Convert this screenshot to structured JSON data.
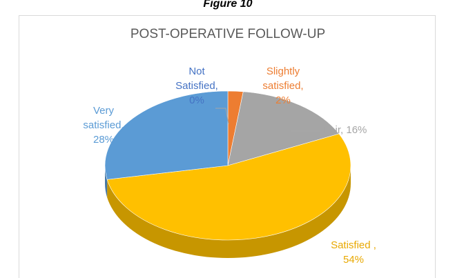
{
  "figure_label": "Figure 10",
  "chart_data": {
    "type": "pie3d",
    "title": "POST-OPERATIVE FOLLOW-UP",
    "categories": [
      "Not Satisfied,",
      "Slightly satisfied,",
      "Fair,",
      "Satisfied ,",
      "Very satisfied,"
    ],
    "values": [
      0,
      2,
      16,
      54,
      28
    ],
    "value_labels": [
      "0%",
      "2%",
      "16%",
      "54%",
      "28%"
    ],
    "colors": [
      "#4472C4",
      "#ED7D31",
      "#A5A5A5",
      "#FFC000",
      "#5B9BD5"
    ]
  }
}
